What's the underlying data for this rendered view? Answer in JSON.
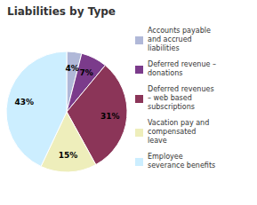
{
  "chart_data": {
    "type": "pie",
    "title": "Liabilities by Type",
    "categories": [
      "Accounts payable\nand accrued\nliabilities",
      "Deferred revenue –\ndonations",
      "Deferred revenues\n– web based\nsubscriptions",
      "Vacation pay and\ncompensated\nleave",
      "Employee\nseverance benefits"
    ],
    "values": [
      4,
      7,
      31,
      15,
      43
    ],
    "value_labels": [
      "4%",
      "7%",
      "31%",
      "15%",
      "43%"
    ],
    "colors": [
      "#b0b8d8",
      "#7b3b8b",
      "#8b3558",
      "#eeeebb",
      "#cceeff"
    ],
    "data_labels": true,
    "legend": "right"
  }
}
